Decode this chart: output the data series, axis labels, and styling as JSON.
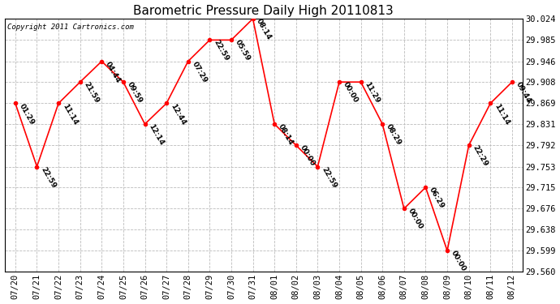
{
  "title": "Barometric Pressure Daily High 20110813",
  "copyright": "Copyright 2011 Cartronics.com",
  "x_labels_display": [
    "07/20",
    "07/21",
    "07/22",
    "07/23",
    "07/24",
    "07/25",
    "07/26",
    "07/27",
    "07/28",
    "07/29",
    "07/30",
    "07/31",
    "08/01",
    "08/02",
    "08/03",
    "08/04",
    "08/05",
    "08/06",
    "08/07",
    "08/08",
    "08/09",
    "08/10",
    "08/11",
    "08/12"
  ],
  "y_values": [
    29.869,
    29.753,
    29.869,
    29.908,
    29.946,
    29.908,
    29.831,
    29.869,
    29.946,
    29.985,
    29.985,
    30.024,
    29.831,
    29.792,
    29.753,
    29.908,
    29.908,
    29.831,
    29.676,
    29.715,
    29.599,
    29.792,
    29.869,
    29.908
  ],
  "time_labels": [
    "01:29",
    "22:59",
    "11:14",
    "21:59",
    "04:44",
    "09:59",
    "12:14",
    "12:44",
    "07:29",
    "22:59",
    "05:59",
    "08:14",
    "08:14",
    "00:00",
    "22:59",
    "00:00",
    "11:29",
    "08:29",
    "00:00",
    "06:29",
    "00:00",
    "22:29",
    "11:14",
    "09:44"
  ],
  "ylim_min": 29.56,
  "ylim_max": 30.024,
  "yticks": [
    29.56,
    29.599,
    29.638,
    29.676,
    29.715,
    29.753,
    29.792,
    29.831,
    29.869,
    29.908,
    29.946,
    29.985,
    30.024
  ],
  "line_color": "red",
  "marker_color": "red",
  "marker_size": 3,
  "background_color": "white",
  "grid_color": "#bbbbbb",
  "title_fontsize": 11,
  "annotation_fontsize": 6.5,
  "tick_fontsize": 7.5,
  "copyright_fontsize": 6.5,
  "figwidth": 6.9,
  "figheight": 3.75,
  "dpi": 100
}
